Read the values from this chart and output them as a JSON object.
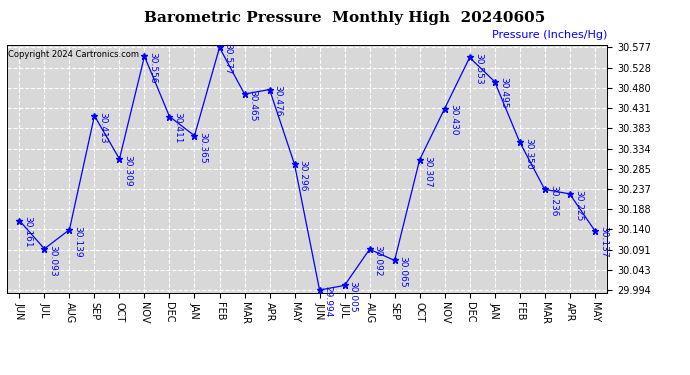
{
  "title": "Barometric Pressure  Monthly High  20240605",
  "ylabel": "Pressure (Inches/Hg)",
  "copyright": "Copyright 2024 Cartronics.com",
  "months": [
    "JUN",
    "JUL",
    "AUG",
    "SEP",
    "OCT",
    "NOV",
    "DEC",
    "JAN",
    "FEB",
    "MAR",
    "APR",
    "MAY",
    "JUN",
    "JUL",
    "AUG",
    "SEP",
    "OCT",
    "NOV",
    "DEC",
    "JAN",
    "FEB",
    "MAR",
    "APR",
    "MAY"
  ],
  "values": [
    30.161,
    30.093,
    30.139,
    30.413,
    30.309,
    30.556,
    30.411,
    30.365,
    30.577,
    30.465,
    30.476,
    30.296,
    29.994,
    30.005,
    30.092,
    30.065,
    30.307,
    30.43,
    30.553,
    30.495,
    30.35,
    30.236,
    30.225,
    30.137
  ],
  "ylim_min": 29.994,
  "ylim_max": 30.577,
  "yticks": [
    29.994,
    30.043,
    30.091,
    30.14,
    30.188,
    30.237,
    30.285,
    30.334,
    30.383,
    30.431,
    30.48,
    30.528,
    30.577
  ],
  "line_color": "blue",
  "marker": "*",
  "marker_size": 5,
  "marker_color": "blue",
  "bg_color": "#d8d8d8",
  "grid_color": "white",
  "title_color": "black",
  "label_color": "blue",
  "copyright_color": "black",
  "title_fontsize": 11,
  "annot_fontsize": 6.5,
  "tick_fontsize": 7,
  "ylabel_fontsize": 8,
  "copyright_fontsize": 6
}
